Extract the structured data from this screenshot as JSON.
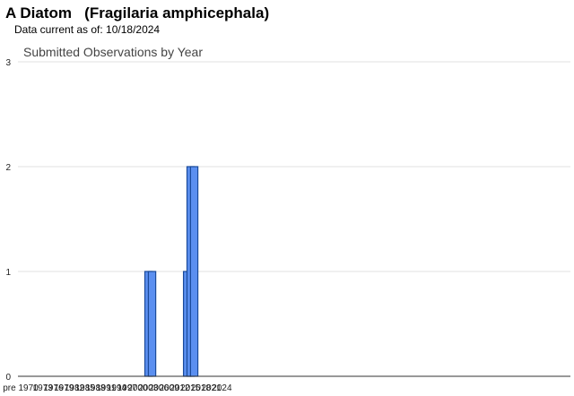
{
  "header": {
    "title": "A Diatom   (Fragilaria amphicephala)",
    "subtitle": "Data current as of: 10/18/2024"
  },
  "chart_data": {
    "type": "bar",
    "title": "Submitted Observations by Year",
    "xlabel": "",
    "ylabel": "",
    "ylim": [
      0,
      3
    ],
    "yticks": [
      0,
      1,
      2,
      3
    ],
    "x_tick_labels": [
      "pre 1970",
      "1973",
      "1976",
      "1979",
      "1982",
      "1985",
      "1988",
      "1991",
      "1994",
      "1997",
      "2000",
      "2003",
      "2006",
      "2009",
      "2012",
      "2015",
      "2018",
      "2021",
      "2024"
    ],
    "categories": [
      "pre 1970",
      "1970",
      "1971",
      "1972",
      "1973",
      "1974",
      "1975",
      "1976",
      "1977",
      "1978",
      "1979",
      "1980",
      "1981",
      "1982",
      "1983",
      "1984",
      "1985",
      "1986",
      "1987",
      "1988",
      "1989",
      "1990",
      "1991",
      "1992",
      "1993",
      "1994",
      "1995",
      "1996",
      "1997",
      "1998",
      "1999",
      "2000",
      "2001",
      "2002",
      "2003",
      "2004",
      "2005",
      "2006",
      "2007",
      "2008",
      "2009",
      "2010",
      "2011",
      "2012",
      "2013",
      "2014",
      "2015",
      "2016",
      "2017",
      "2018",
      "2019",
      "2020",
      "2021",
      "2022",
      "2023",
      "2024"
    ],
    "values": [
      0,
      0,
      0,
      0,
      0,
      0,
      0,
      0,
      0,
      0,
      0,
      0,
      0,
      0,
      0,
      0,
      0,
      0,
      0,
      0,
      0,
      0,
      0,
      0,
      0,
      0,
      0,
      0,
      0,
      0,
      0,
      0,
      0,
      0,
      0,
      1,
      1,
      0,
      0,
      0,
      0,
      0,
      0,
      0,
      0,
      0,
      1,
      2,
      2,
      0,
      0,
      0,
      0,
      0,
      0,
      0
    ],
    "grid": true,
    "legend": "none",
    "colors": {
      "bar_fill": "#5b8ff0",
      "bar_stroke": "#1a4a9a",
      "grid": "#e0e0e0",
      "axis": "#333333"
    }
  }
}
